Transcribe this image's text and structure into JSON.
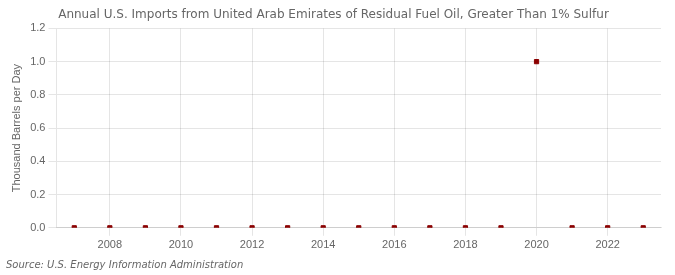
{
  "chart_data": {
    "type": "scatter",
    "title": "Annual U.S. Imports from United Arab Emirates of Residual Fuel Oil, Greater Than 1% Sulfur",
    "ylabel": "Thousand Barrels per Day",
    "annotations": [
      "Source: U.S. Energy Information Administration"
    ],
    "x": [
      2007,
      2008,
      2009,
      2010,
      2011,
      2012,
      2013,
      2014,
      2015,
      2016,
      2017,
      2018,
      2019,
      2020,
      2021,
      2022,
      2023
    ],
    "values": [
      0.0,
      0.0,
      0.0,
      0.0,
      0.0,
      0.0,
      0.0,
      0.0,
      0.0,
      0.0,
      0.0,
      0.0,
      0.0,
      1.0,
      0.0,
      0.0,
      0.0
    ],
    "color": "#8b0000",
    "marker": "square",
    "xlim": [
      2006.5,
      2023.5
    ],
    "ylim": [
      0.0,
      1.2
    ],
    "xticks": [
      2008,
      2010,
      2012,
      2014,
      2016,
      2018,
      2020,
      2022
    ],
    "yticks": [
      {
        "value": 0.0,
        "label": "0.0"
      },
      0.2,
      0.4,
      0.6,
      0.8,
      {
        "value": 1.0,
        "label": "1.0"
      },
      1.2
    ],
    "grid": true
  }
}
